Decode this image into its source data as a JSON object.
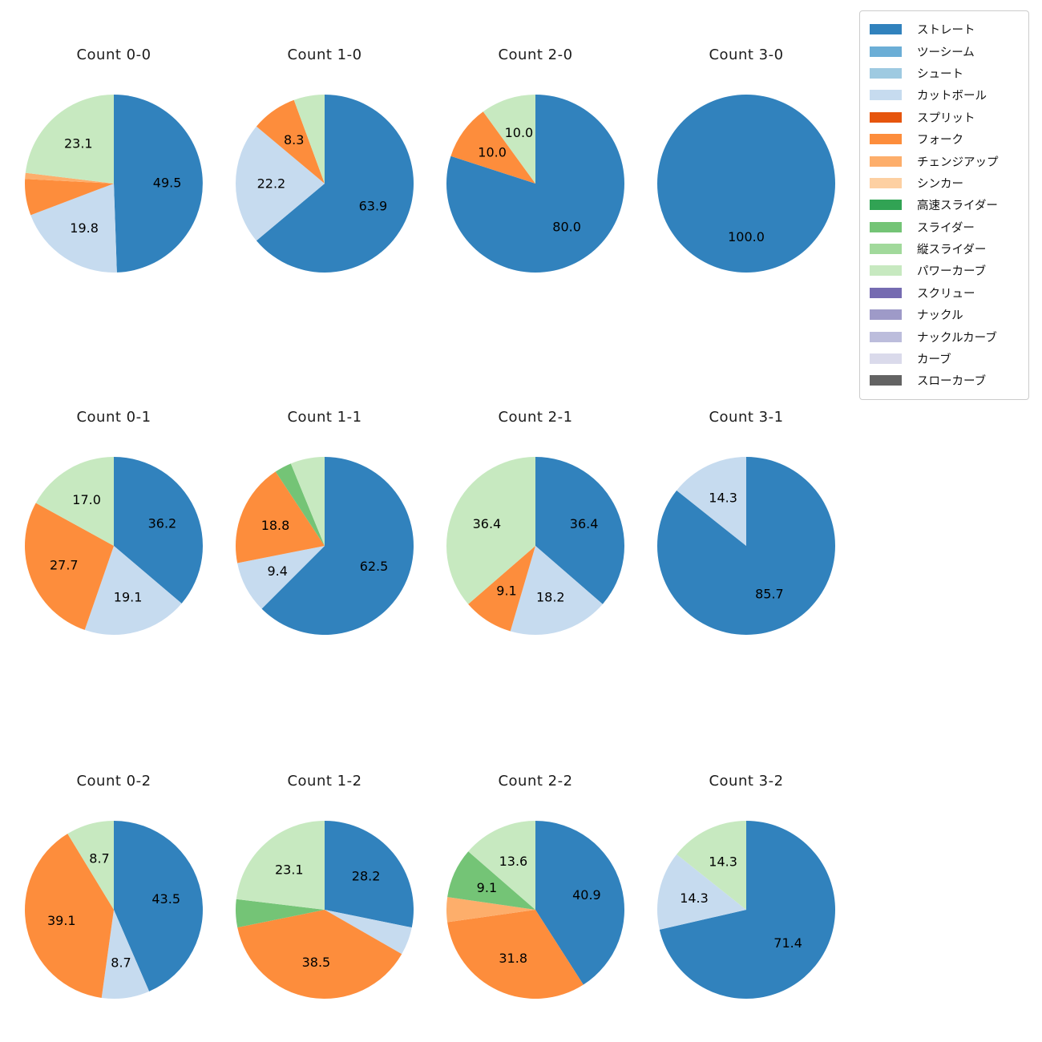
{
  "figure": {
    "background": "#ffffff"
  },
  "legend": {
    "items": [
      {
        "label": "ストレート",
        "color": "#3182bd"
      },
      {
        "label": "ツーシーム",
        "color": "#6baed6"
      },
      {
        "label": "シュート",
        "color": "#9ecae1"
      },
      {
        "label": "カットボール",
        "color": "#c6dbef"
      },
      {
        "label": "スプリット",
        "color": "#e6550d"
      },
      {
        "label": "フォーク",
        "color": "#fd8d3c"
      },
      {
        "label": "チェンジアップ",
        "color": "#fdae6b"
      },
      {
        "label": "シンカー",
        "color": "#fdd0a2"
      },
      {
        "label": "高速スライダー",
        "color": "#31a354"
      },
      {
        "label": "スライダー",
        "color": "#74c476"
      },
      {
        "label": "縦スライダー",
        "color": "#a1d99b"
      },
      {
        "label": "パワーカーブ",
        "color": "#c7e9c0"
      },
      {
        "label": "スクリュー",
        "color": "#756bb1"
      },
      {
        "label": "ナックル",
        "color": "#9e9ac8"
      },
      {
        "label": "ナックルカーブ",
        "color": "#bcbddc"
      },
      {
        "label": "カーブ",
        "color": "#dadaeb"
      },
      {
        "label": "スローカーブ",
        "color": "#636363"
      }
    ]
  },
  "chart_data": [
    {
      "type": "pie",
      "title": "Count 0-0",
      "start_angle_deg": 0,
      "direction": "clockwise",
      "slices": [
        {
          "label": "ストレート",
          "value": 49.5,
          "pct_label": "49.5"
        },
        {
          "label": "カットボール",
          "value": 19.8,
          "pct_label": "19.8"
        },
        {
          "label": "フォーク",
          "value": 6.6,
          "pct_label": ""
        },
        {
          "label": "チェンジアップ",
          "value": 1.1,
          "pct_label": ""
        },
        {
          "label": "パワーカーブ",
          "value": 23.1,
          "pct_label": "23.1"
        }
      ]
    },
    {
      "type": "pie",
      "title": "Count 1-0",
      "start_angle_deg": 0,
      "direction": "clockwise",
      "slices": [
        {
          "label": "ストレート",
          "value": 63.9,
          "pct_label": "63.9"
        },
        {
          "label": "カットボール",
          "value": 22.2,
          "pct_label": "22.2"
        },
        {
          "label": "フォーク",
          "value": 8.3,
          "pct_label": "8.3"
        },
        {
          "label": "パワーカーブ",
          "value": 5.6,
          "pct_label": ""
        }
      ]
    },
    {
      "type": "pie",
      "title": "Count 2-0",
      "start_angle_deg": 0,
      "direction": "clockwise",
      "slices": [
        {
          "label": "ストレート",
          "value": 80.0,
          "pct_label": "80.0"
        },
        {
          "label": "フォーク",
          "value": 10.0,
          "pct_label": "10.0"
        },
        {
          "label": "パワーカーブ",
          "value": 10.0,
          "pct_label": "10.0"
        }
      ]
    },
    {
      "type": "pie",
      "title": "Count 3-0",
      "start_angle_deg": 0,
      "direction": "clockwise",
      "slices": [
        {
          "label": "ストレート",
          "value": 100.0,
          "pct_label": "100.0"
        }
      ]
    },
    {
      "type": "pie",
      "title": "Count 0-1",
      "start_angle_deg": 0,
      "direction": "clockwise",
      "slices": [
        {
          "label": "ストレート",
          "value": 36.2,
          "pct_label": "36.2"
        },
        {
          "label": "カットボール",
          "value": 19.1,
          "pct_label": "19.1"
        },
        {
          "label": "フォーク",
          "value": 27.7,
          "pct_label": "27.7"
        },
        {
          "label": "パワーカーブ",
          "value": 17.0,
          "pct_label": "17.0"
        }
      ]
    },
    {
      "type": "pie",
      "title": "Count 1-1",
      "start_angle_deg": 0,
      "direction": "clockwise",
      "slices": [
        {
          "label": "ストレート",
          "value": 62.5,
          "pct_label": "62.5"
        },
        {
          "label": "カットボール",
          "value": 9.4,
          "pct_label": "9.4"
        },
        {
          "label": "フォーク",
          "value": 18.8,
          "pct_label": "18.8"
        },
        {
          "label": "スライダー",
          "value": 3.1,
          "pct_label": ""
        },
        {
          "label": "パワーカーブ",
          "value": 6.2,
          "pct_label": ""
        }
      ]
    },
    {
      "type": "pie",
      "title": "Count 2-1",
      "start_angle_deg": 0,
      "direction": "clockwise",
      "slices": [
        {
          "label": "ストレート",
          "value": 36.4,
          "pct_label": "36.4"
        },
        {
          "label": "カットボール",
          "value": 18.2,
          "pct_label": "18.2"
        },
        {
          "label": "フォーク",
          "value": 9.1,
          "pct_label": "9.1"
        },
        {
          "label": "パワーカーブ",
          "value": 36.4,
          "pct_label": "36.4"
        }
      ]
    },
    {
      "type": "pie",
      "title": "Count 3-1",
      "start_angle_deg": 0,
      "direction": "clockwise",
      "slices": [
        {
          "label": "ストレート",
          "value": 85.7,
          "pct_label": "85.7"
        },
        {
          "label": "カットボール",
          "value": 14.3,
          "pct_label": "14.3"
        }
      ]
    },
    {
      "type": "pie",
      "title": "Count 0-2",
      "start_angle_deg": 0,
      "direction": "clockwise",
      "slices": [
        {
          "label": "ストレート",
          "value": 43.5,
          "pct_label": "43.5"
        },
        {
          "label": "カットボール",
          "value": 8.7,
          "pct_label": "8.7"
        },
        {
          "label": "フォーク",
          "value": 39.1,
          "pct_label": "39.1"
        },
        {
          "label": "パワーカーブ",
          "value": 8.7,
          "pct_label": "8.7"
        }
      ]
    },
    {
      "type": "pie",
      "title": "Count 1-2",
      "start_angle_deg": 0,
      "direction": "clockwise",
      "slices": [
        {
          "label": "ストレート",
          "value": 28.2,
          "pct_label": "28.2"
        },
        {
          "label": "カットボール",
          "value": 5.1,
          "pct_label": ""
        },
        {
          "label": "フォーク",
          "value": 38.5,
          "pct_label": "38.5"
        },
        {
          "label": "スライダー",
          "value": 5.1,
          "pct_label": ""
        },
        {
          "label": "パワーカーブ",
          "value": 23.1,
          "pct_label": "23.1"
        }
      ]
    },
    {
      "type": "pie",
      "title": "Count 2-2",
      "start_angle_deg": 0,
      "direction": "clockwise",
      "slices": [
        {
          "label": "ストレート",
          "value": 40.9,
          "pct_label": "40.9"
        },
        {
          "label": "フォーク",
          "value": 31.8,
          "pct_label": "31.8"
        },
        {
          "label": "チェンジアップ",
          "value": 4.5,
          "pct_label": ""
        },
        {
          "label": "スライダー",
          "value": 9.1,
          "pct_label": "9.1"
        },
        {
          "label": "パワーカーブ",
          "value": 13.6,
          "pct_label": "13.6"
        }
      ]
    },
    {
      "type": "pie",
      "title": "Count 3-2",
      "start_angle_deg": 0,
      "direction": "clockwise",
      "slices": [
        {
          "label": "ストレート",
          "value": 71.4,
          "pct_label": "71.4"
        },
        {
          "label": "カットボール",
          "value": 14.3,
          "pct_label": "14.3"
        },
        {
          "label": "パワーカーブ",
          "value": 14.3,
          "pct_label": "14.3"
        }
      ]
    }
  ]
}
